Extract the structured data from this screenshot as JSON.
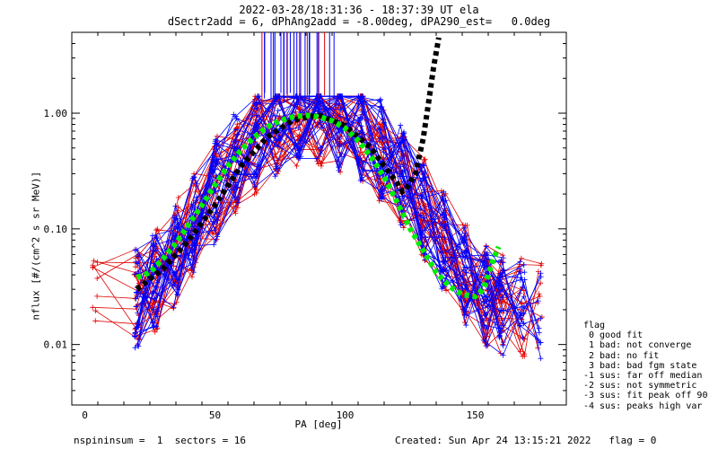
{
  "chart_data": {
    "type": "line",
    "title": "2022-03-28/18:31:36 - 18:37:39 UT ela",
    "subtitle": "dSectr2add = 6, dPhAng2add = -8.00deg, dPA290_est=   0.0deg",
    "xlabel": "PA [deg]",
    "ylabel": "nflux [#/(cm^2 s sr MeV)]",
    "xlim": [
      -5,
      185
    ],
    "ylim": [
      0.003,
      5.0
    ],
    "y_scale": "log",
    "x_ticks": [
      0,
      50,
      100,
      150
    ],
    "y_ticks": [
      0.01,
      0.1,
      1.0
    ],
    "y_tick_labels": [
      "0.01",
      "0.10",
      "1.00"
    ],
    "grid": false,
    "series": [
      {
        "style": "black thick dashed",
        "x": [
          20,
          30,
          40,
          50,
          60,
          70,
          80,
          90,
          100,
          110,
          115,
          120,
          122,
          124,
          127,
          130,
          132,
          134,
          136
        ],
        "y": [
          0.03,
          0.045,
          0.08,
          0.16,
          0.35,
          0.62,
          0.87,
          0.96,
          0.78,
          0.5,
          0.35,
          0.25,
          0.21,
          0.23,
          0.3,
          0.6,
          1.2,
          2.5,
          4.5
        ]
      },
      {
        "style": "green thick dashed",
        "x": [
          20,
          25,
          30,
          35,
          40,
          45,
          50,
          55,
          60,
          65,
          70,
          75,
          80,
          85,
          90,
          95,
          100,
          105,
          110,
          115,
          120,
          125,
          130,
          135,
          140,
          145,
          150,
          153,
          155,
          157,
          159
        ],
        "y": [
          0.038,
          0.042,
          0.055,
          0.075,
          0.11,
          0.16,
          0.24,
          0.35,
          0.48,
          0.62,
          0.76,
          0.86,
          0.93,
          0.96,
          0.93,
          0.86,
          0.74,
          0.58,
          0.42,
          0.28,
          0.17,
          0.1,
          0.065,
          0.042,
          0.032,
          0.027,
          0.026,
          0.03,
          0.04,
          0.055,
          0.07
        ]
      }
    ],
    "legend": {
      "position": "right",
      "title": "flag",
      "entries": [
        "0 good fit",
        "1 bad: not converge",
        "2 bad: no fit",
        "3 bad: bad fgm state",
        "-1 sus: far off median",
        "-2 sus: not symmetric",
        "-3 sus: fit peak off 90",
        "-4 sus: peaks high var"
      ]
    },
    "colors": {
      "red": "#e00000",
      "blue": "#0000ff",
      "black": "#000000",
      "green": "#00ee00"
    }
  },
  "footer": {
    "left": "nspininsum =  1  sectors = 16",
    "right": "Created: Sun Apr 24 13:15:21 2022   flag = 0"
  }
}
